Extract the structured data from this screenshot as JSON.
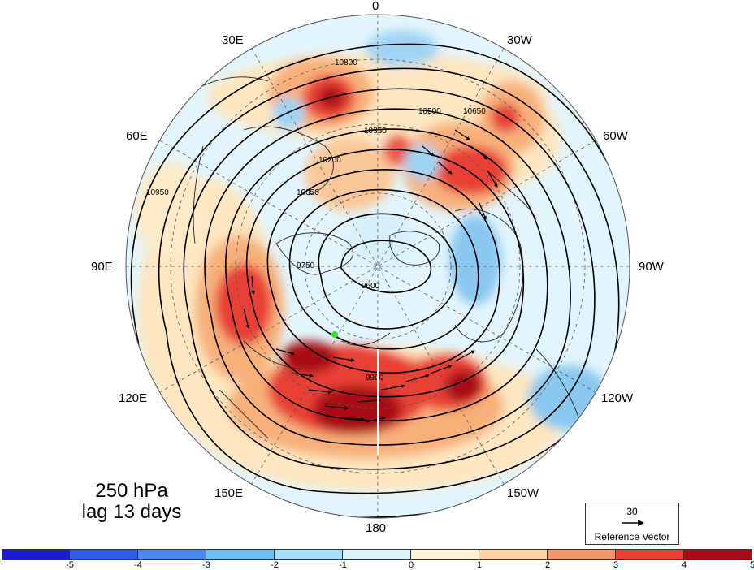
{
  "title": {
    "line1": "250 hPa",
    "line2": "lag 13 days"
  },
  "longitude_labels": {
    "top": "0",
    "bottom": "180",
    "e30": "30E",
    "e60": "60E",
    "e90": "90E",
    "e120": "120E",
    "e150": "150E",
    "w30": "30W",
    "w60": "60W",
    "w90": "90W",
    "w120": "120W",
    "w150": "150W"
  },
  "reference_vector": {
    "value": "30",
    "label": "Reference Vector"
  },
  "contour_levels": [
    "9600",
    "9750",
    "9900",
    "10050",
    "10200",
    "10350",
    "10500",
    "10650",
    "10800",
    "10950"
  ],
  "colorbar": {
    "ticks": [
      "-5",
      "-4",
      "-3",
      "-2",
      "-1",
      "0",
      "1",
      "2",
      "3",
      "4",
      "5"
    ],
    "colors": [
      "#1a1ad0",
      "#2e5ee8",
      "#4a8af0",
      "#6cc0f4",
      "#a6e0f8",
      "#dcf4fc",
      "#fdf2d6",
      "#fcd4a4",
      "#f4986c",
      "#e84034",
      "#a80c18"
    ]
  },
  "marker_color": "#3cdc2c"
}
